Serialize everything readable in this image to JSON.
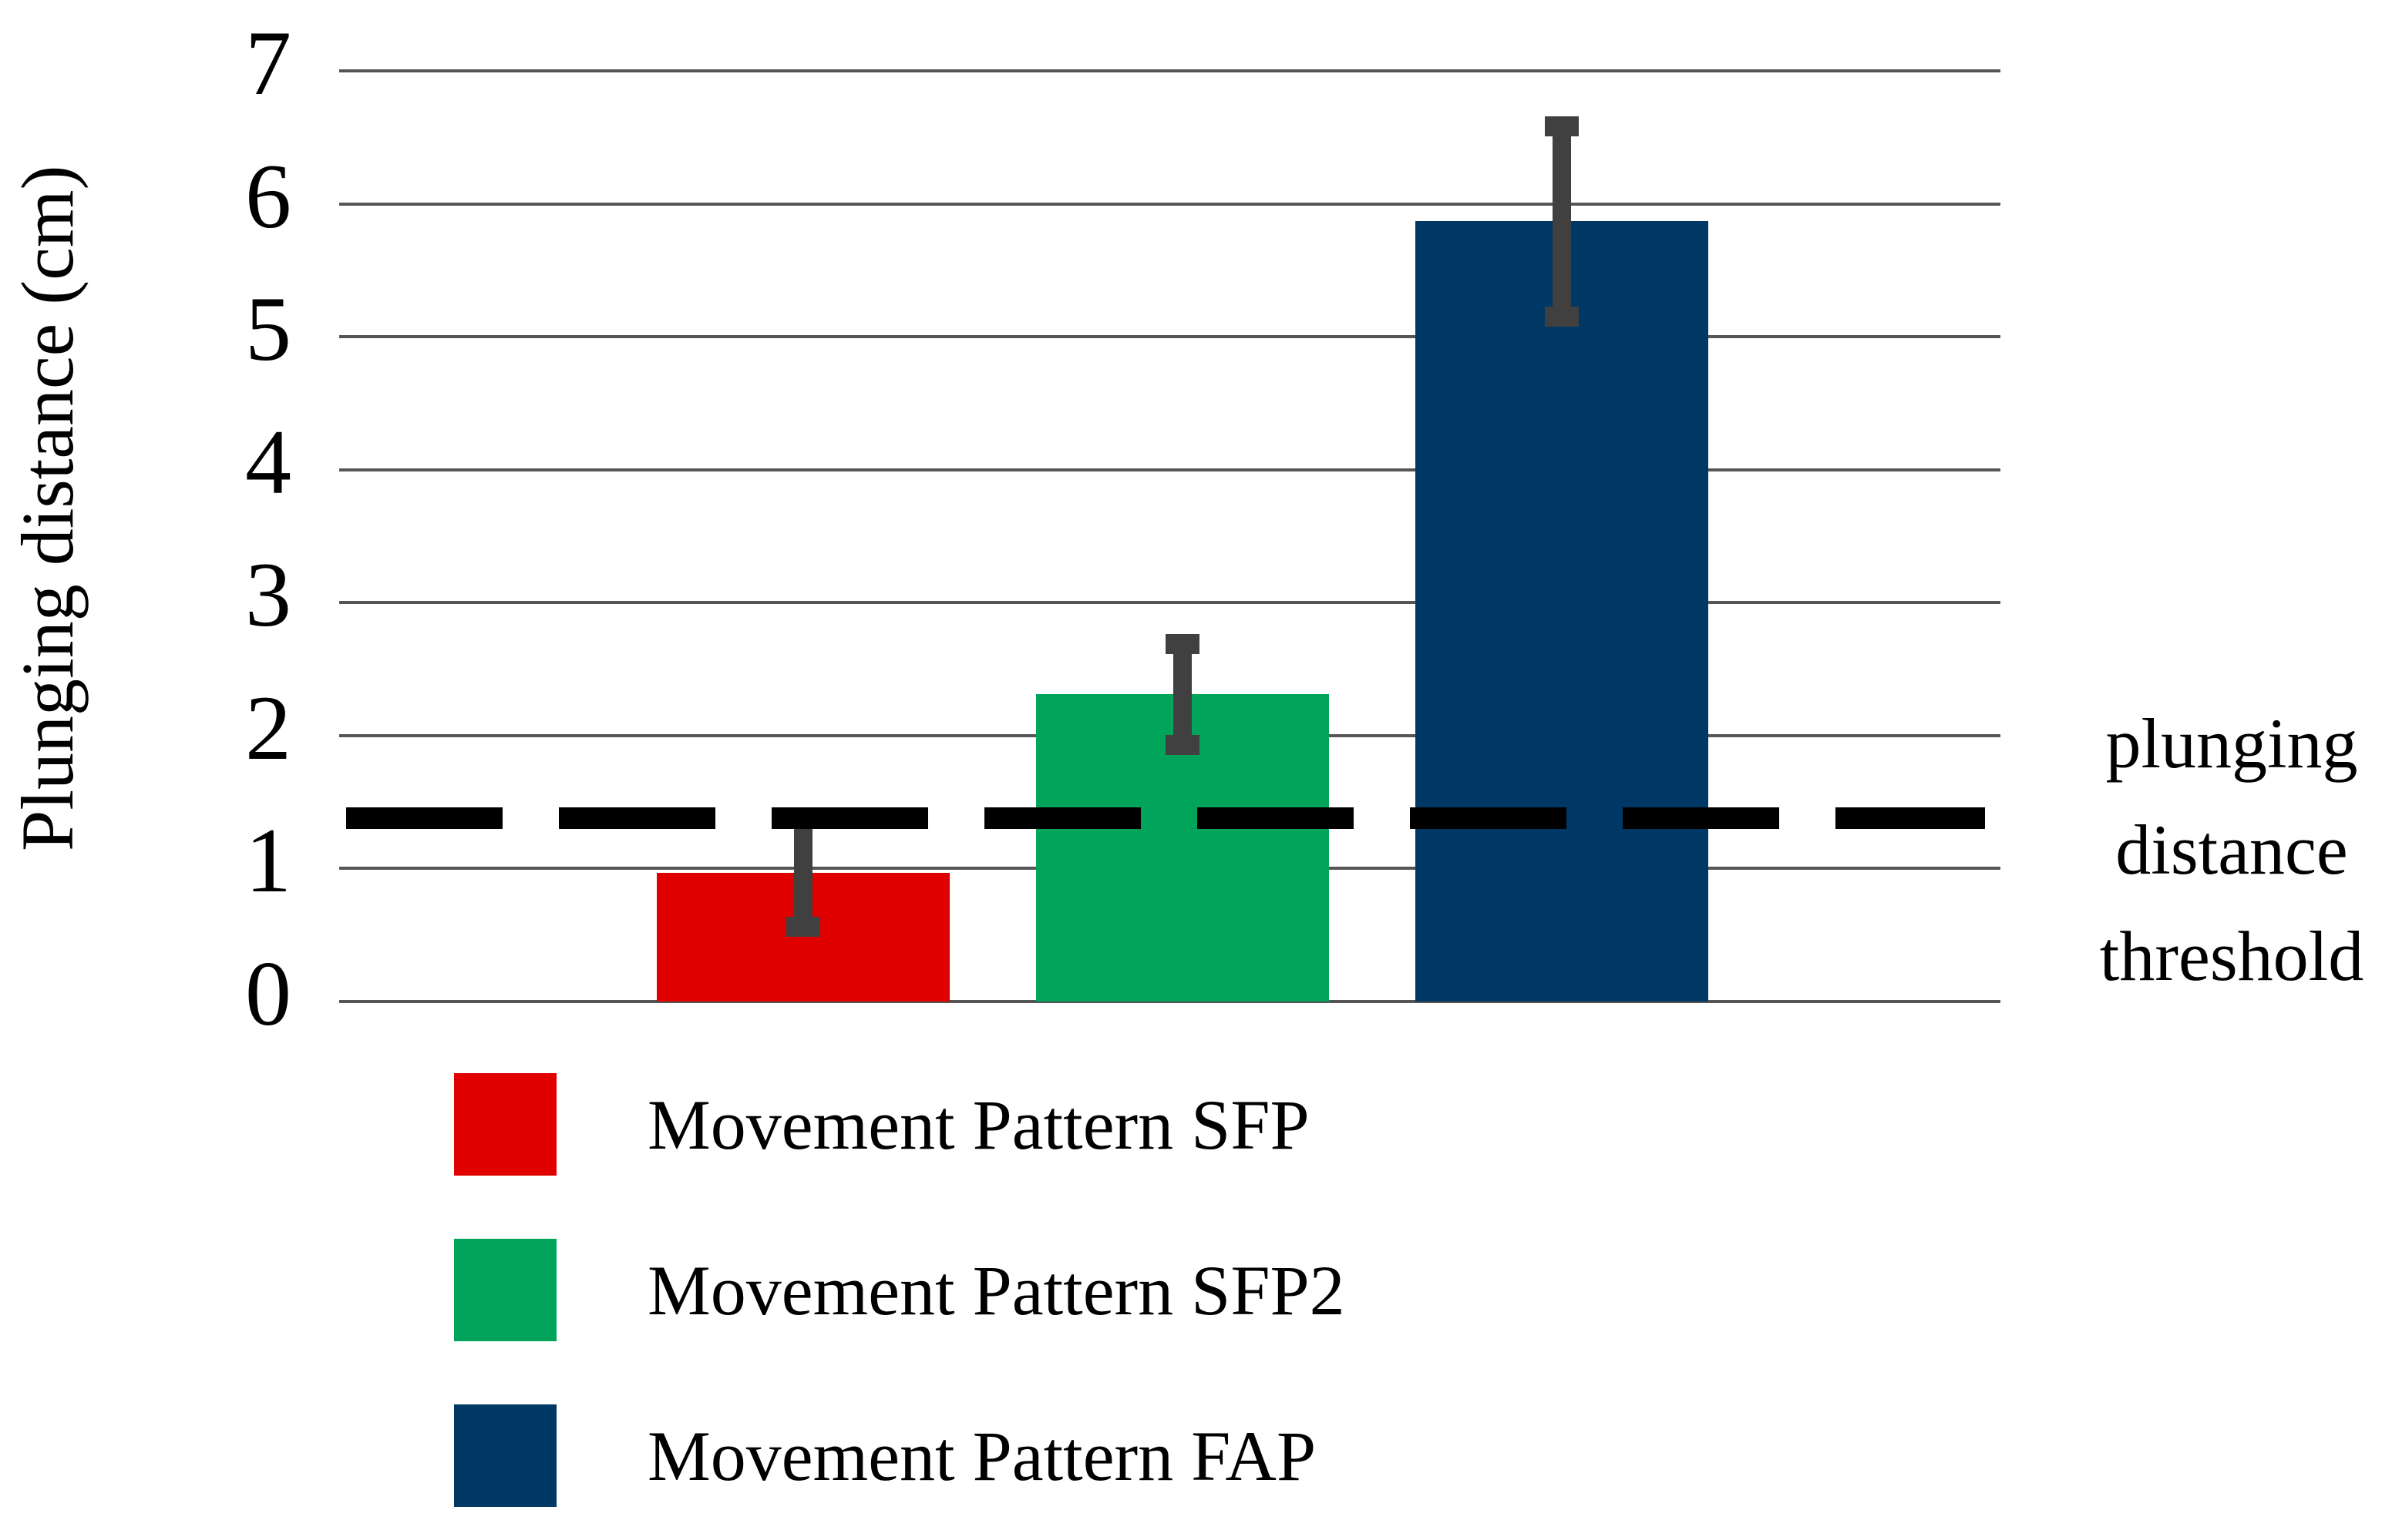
{
  "figure": {
    "background": "#ffffff"
  },
  "chart_data": {
    "type": "bar",
    "title": "",
    "xlabel": "",
    "ylabel": "Plunging distance (cm)",
    "ylim": [
      0,
      7
    ],
    "y_ticks": [
      0,
      1,
      2,
      3,
      4,
      5,
      6,
      7
    ],
    "grid": "horizontal-only",
    "gridline_color": "#555555",
    "error_bar_color": "#404040",
    "categories": [
      "Movement Pattern SFP",
      "Movement Pattern SFP2",
      "Movement Pattern FAP"
    ],
    "series": [
      {
        "name": "Movement Pattern SFP",
        "value": 0.97,
        "error_low": 0.56,
        "error_high": 1.38,
        "color": "#e00000"
      },
      {
        "name": "Movement Pattern SFP2",
        "value": 2.31,
        "error_low": 1.93,
        "error_high": 2.69,
        "color": "#00a45a"
      },
      {
        "name": "Movement Pattern FAP",
        "value": 5.87,
        "error_low": 5.15,
        "error_high": 6.58,
        "color": "#003865"
      }
    ],
    "threshold": {
      "value": 1.38,
      "style": "dashed",
      "color": "#000000",
      "label_lines": [
        "plunging",
        "distance",
        "threshold"
      ]
    },
    "legend_position": "bottom-left"
  },
  "legend": {
    "items": [
      {
        "label": "Movement Pattern SFP",
        "color": "#e00000"
      },
      {
        "label": "Movement Pattern SFP2",
        "color": "#00a45a"
      },
      {
        "label": "Movement Pattern FAP",
        "color": "#003865"
      }
    ]
  }
}
